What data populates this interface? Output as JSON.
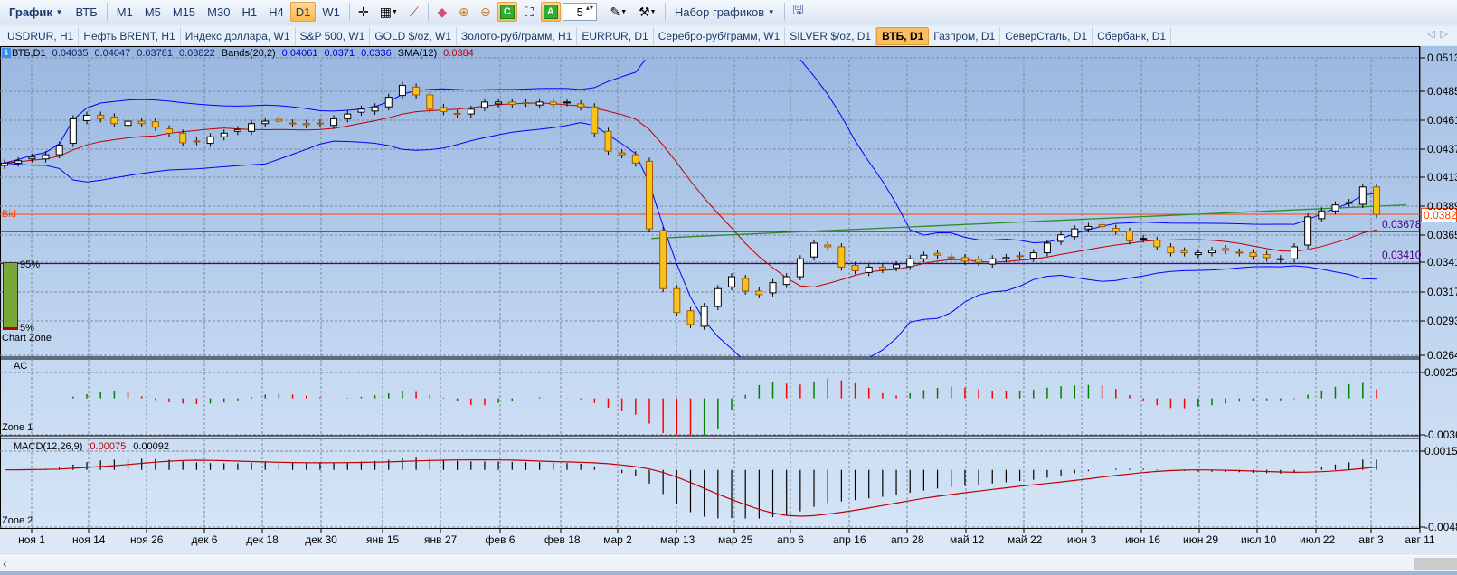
{
  "toolbar": {
    "menu_label": "График",
    "symbol": "ВТБ",
    "timeframes": [
      "M1",
      "M5",
      "M15",
      "M30",
      "H1",
      "H4",
      "D1",
      "W1"
    ],
    "active_timeframe": "D1",
    "spinner_value": "5",
    "chart_sets_label": "Набор графиков",
    "icons": [
      "crosshair-icon",
      "chart-type-icon",
      "indicators-icon",
      "eraser-icon",
      "zoom-in-icon",
      "zoom-out-icon",
      "c-icon",
      "frame-icon",
      "a-icon",
      "template-icon",
      "tools-icon",
      "save-icon"
    ],
    "c_label": "C",
    "a_label": "A"
  },
  "tabs": [
    "USDRUR, H1",
    "Нефть BRENT, H1",
    "Индекс доллара, W1",
    "S&P 500, W1",
    "GOLD $/oz, W1",
    "Золото-руб/грамм, H1",
    "EURRUR, D1",
    "Серебро-руб/грамм, W1",
    "SILVER $/oz, D1",
    "ВТБ, D1",
    "Газпром, D1",
    "СеверСталь, D1",
    "Сбербанк, D1"
  ],
  "active_tab": "ВТБ, D1",
  "header": {
    "symbol": "ВТБ,D1",
    "open": "0.04035",
    "high": "0.04047",
    "low": "0.03781",
    "close": "0.03822",
    "bands_label": "Bands(20,2)",
    "bands": [
      "0.04061",
      "0.0371",
      "0.0336"
    ],
    "sma_label": "SMA(12)",
    "sma": "0.0384"
  },
  "main_pane": {
    "bid_label": "Bid",
    "bid_value": "0.03822",
    "levels": [
      {
        "value": "0.03678",
        "price": 0.03678
      },
      {
        "value": "0.03410",
        "price": 0.0341
      }
    ],
    "zone_label": "Chart Zone",
    "zone_top": "95%",
    "zone_bottom": "5%",
    "price_ticks": [
      "0.0513",
      "0.0485",
      "0.0461",
      "0.0437",
      "0.0413",
      "0.0389",
      "0.0365",
      "0.0341",
      "0.0317",
      "0.0293",
      "0.0264"
    ]
  },
  "ac_pane": {
    "title": "AC",
    "zone_label": "Zone 1",
    "ticks": [
      "0.00255",
      "-0.0036"
    ]
  },
  "macd_pane": {
    "title": "MACD(12,26,9)",
    "value_main": "0.00075",
    "value_signal": "0.00092",
    "zone_label": "Zone 2",
    "ticks": [
      "0.00157",
      "-0.0048"
    ]
  },
  "date_ticks": [
    "ноя 1",
    "ноя 14",
    "ноя 26",
    "дек 6",
    "дек 18",
    "дек 30",
    "янв 15",
    "янв 27",
    "фев 6",
    "фев 18",
    "мар 2",
    "мар 13",
    "мар 25",
    "апр 6",
    "апр 16",
    "апр 28",
    "май 12",
    "май 22",
    "июн 3",
    "июн 16",
    "июн 29",
    "июл 10",
    "июл 22",
    "авг 3",
    "авг 11"
  ],
  "colors": {
    "up_candle": "#ffffff",
    "down_candle": "#f7c21a",
    "bands": "#0000ff",
    "sma": "#c00000",
    "trendline": "#2e8b2e",
    "bid": "#ff4500",
    "levels": "#4b0082",
    "ac_up": "#008000",
    "ac_down": "#ff0000",
    "macd_hist": "#000000",
    "macd_signal": "#c00000"
  },
  "chart_data": {
    "type": "candlestick",
    "symbol": "ВТБ",
    "timeframe": "D1",
    "price_range": [
      0.0264,
      0.0513
    ],
    "closes": [
      0.0425,
      0.0427,
      0.043,
      0.0432,
      0.044,
      0.0462,
      0.0465,
      0.0462,
      0.0458,
      0.046,
      0.0458,
      0.0455,
      0.045,
      0.0442,
      0.0443,
      0.0447,
      0.045,
      0.0453,
      0.0458,
      0.046,
      0.046,
      0.0458,
      0.0457,
      0.0458,
      0.0462,
      0.0466,
      0.047,
      0.0472,
      0.048,
      0.049,
      0.0482,
      0.047,
      0.0468,
      0.0466,
      0.047,
      0.0476,
      0.0476,
      0.0474,
      0.0475,
      0.0476,
      0.0474,
      0.0476,
      0.0472,
      0.045,
      0.0435,
      0.0432,
      0.0425,
      0.037,
      0.032,
      0.03,
      0.029,
      0.0305,
      0.032,
      0.033,
      0.0318,
      0.0315,
      0.0325,
      0.033,
      0.0345,
      0.0358,
      0.0355,
      0.0338,
      0.0335,
      0.0338,
      0.0336,
      0.034,
      0.0345,
      0.0348,
      0.0348,
      0.0346,
      0.0343,
      0.0342,
      0.0345,
      0.0346,
      0.0347,
      0.035,
      0.0358,
      0.0365,
      0.037,
      0.0372,
      0.0372,
      0.0368,
      0.036,
      0.0362,
      0.0355,
      0.035,
      0.035,
      0.035,
      0.0352,
      0.0352,
      0.035,
      0.0347,
      0.0346,
      0.0345,
      0.0355,
      0.038,
      0.0385,
      0.039,
      0.0392,
      0.0405,
      0.0382
    ],
    "trendline": {
      "from_price": 0.0362,
      "to_price": 0.039
    },
    "indicators": [
      "Bands(20,2)",
      "SMA(12)",
      "AC",
      "MACD(12,26,9)"
    ]
  }
}
